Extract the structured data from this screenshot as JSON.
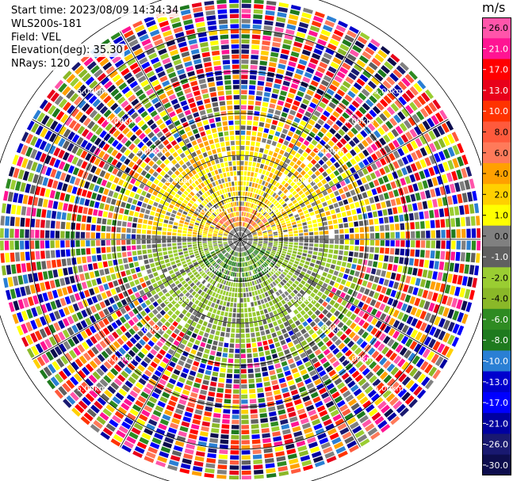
{
  "header": {
    "start_time": "Start time: 2023/08/09 14:34:34",
    "instrument": "WLS200s-181",
    "field": "Field: VEL",
    "elevation": "Elevation(deg): 35.30",
    "nrays": "NRays: 120"
  },
  "chart_data": {
    "type": "heatmap",
    "projection": "polar-ppi",
    "title": "",
    "unit_label": "m/s",
    "range_rings": [
      "1.00km",
      "2.00km",
      "3.00km",
      "4.00km",
      "5.00km"
    ],
    "rays": 120,
    "colorbar": {
      "ticks": [
        "26.0",
        "21.0",
        "17.0",
        "13.0",
        "10.0",
        "8.0",
        "6.0",
        "4.0",
        "2.0",
        "1.0",
        "0.0",
        "-1.0",
        "-2.0",
        "-4.0",
        "-6.0",
        "-8.0",
        "-10.0",
        "-13.0",
        "-17.0",
        "-21.0",
        "-26.0",
        "-30.0"
      ],
      "colors": [
        "#ff55aa",
        "#ff1493",
        "#ff0000",
        "#e8001a",
        "#ff3300",
        "#ff5a3c",
        "#ff7a5a",
        "#ffa000",
        "#ffd000",
        "#ffff00",
        "#808080",
        "#606060",
        "#9acd32",
        "#8ab828",
        "#2e8b22",
        "#1e7a1e",
        "#2a7fd4",
        "#0000cd",
        "#0000ff",
        "#0000a0",
        "#191970",
        "#0d0d4d"
      ]
    }
  }
}
